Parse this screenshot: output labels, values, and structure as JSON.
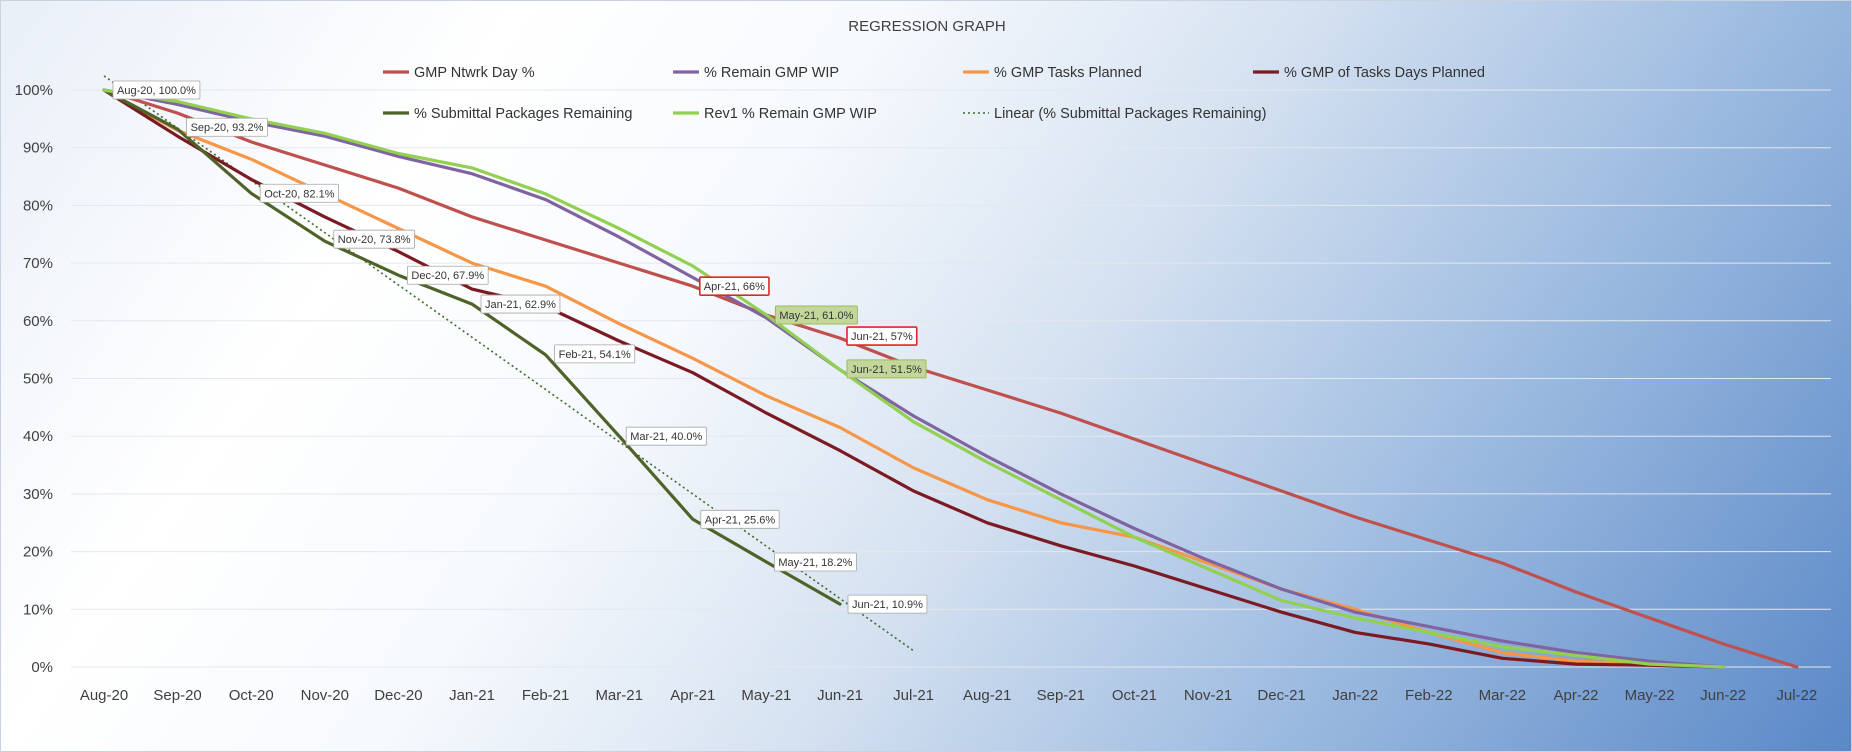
{
  "chart_data": {
    "type": "line",
    "title": "REGRESSION GRAPH",
    "xlabel": "",
    "ylabel": "",
    "ylim": [
      0,
      100
    ],
    "y_ticks": [
      "0%",
      "10%",
      "20%",
      "30%",
      "40%",
      "50%",
      "60%",
      "70%",
      "80%",
      "90%",
      "100%"
    ],
    "grid": "horizontal",
    "legend_position": "top",
    "categories": [
      "Aug-20",
      "Sep-20",
      "Oct-20",
      "Nov-20",
      "Dec-20",
      "Jan-21",
      "Feb-21",
      "Mar-21",
      "Apr-21",
      "May-21",
      "Jun-21",
      "Jul-21",
      "Aug-21",
      "Sep-21",
      "Oct-21",
      "Nov-21",
      "Dec-21",
      "Jan-22",
      "Feb-22",
      "Mar-22",
      "Apr-22",
      "May-22",
      "Jun-22",
      "Jul-22"
    ],
    "series": [
      {
        "name": "GMP Ntwrk Day %",
        "color": "#c0504d",
        "values": [
          100,
          96,
          91,
          87,
          83,
          78,
          74,
          70,
          66,
          61,
          57,
          52,
          48,
          44,
          39.5,
          35,
          30.5,
          26,
          22,
          18,
          13,
          8.5,
          4,
          0
        ]
      },
      {
        "name": "% Remain GMP WIP",
        "color": "#8064a2",
        "values": [
          100,
          97.5,
          94.5,
          92,
          88.5,
          85.5,
          81,
          74.5,
          67.5,
          60.5,
          51.5,
          43.5,
          36.5,
          30,
          24,
          18.5,
          13.5,
          9.5,
          7,
          4.5,
          2.5,
          1,
          0,
          null
        ]
      },
      {
        "name": "% GMP Tasks Planned",
        "color": "#f79646",
        "values": [
          100,
          93,
          88,
          82,
          76,
          70,
          66,
          59.5,
          53.5,
          47,
          41.5,
          34.5,
          29,
          25,
          22.5,
          18,
          13.5,
          10,
          6,
          2.5,
          1,
          0.5,
          0,
          null
        ]
      },
      {
        "name": "% GMP of Tasks Days Planned",
        "color": "#7b1a22",
        "values": [
          100,
          92,
          84.5,
          78,
          72,
          65.5,
          62.5,
          56.5,
          51,
          44,
          37.5,
          30.5,
          25,
          21,
          17.5,
          13.5,
          9.5,
          6,
          4,
          1.5,
          0.5,
          0.3,
          0,
          null
        ]
      },
      {
        "name": "% Submittal Packages Remaining",
        "color": "#4f6228",
        "values": [
          100,
          93.2,
          82.1,
          73.8,
          67.9,
          62.9,
          54.1,
          40.0,
          25.6,
          18.2,
          10.9,
          null,
          null,
          null,
          null,
          null,
          null,
          null,
          null,
          null,
          null,
          null,
          null,
          null
        ]
      },
      {
        "name": "Rev1 % Remain GMP WIP",
        "color": "#92d050",
        "values": [
          100,
          98,
          95,
          92.5,
          89,
          86.5,
          82,
          76,
          69.5,
          61,
          51.5,
          42.5,
          35.5,
          29,
          22.5,
          17,
          11.5,
          8.5,
          6,
          3.5,
          2,
          0.5,
          0,
          null
        ]
      }
    ],
    "trendline": {
      "name": "Linear (% Submittal Packages Remaining)",
      "type": "linear",
      "color": "#3f6b2a",
      "x_end": "Jul-21"
    },
    "data_labels": [
      {
        "text": "Aug-20, 100.0%",
        "series": 4,
        "category": 0,
        "style": "plain"
      },
      {
        "text": "Sep-20, 93.2%",
        "series": 4,
        "category": 1,
        "style": "plain"
      },
      {
        "text": "Oct-20, 82.1%",
        "series": 4,
        "category": 2,
        "style": "plain"
      },
      {
        "text": "Nov-20, 73.8%",
        "series": 4,
        "category": 3,
        "style": "plain"
      },
      {
        "text": "Dec-20, 67.9%",
        "series": 4,
        "category": 4,
        "style": "plain"
      },
      {
        "text": "Jan-21, 62.9%",
        "series": 4,
        "category": 5,
        "style": "plain"
      },
      {
        "text": "Feb-21, 54.1%",
        "series": 4,
        "category": 6,
        "style": "plain"
      },
      {
        "text": "Mar-21, 40.0%",
        "series": 4,
        "category": 7,
        "style": "plain"
      },
      {
        "text": "Apr-21, 25.6%",
        "series": 4,
        "category": 8,
        "style": "plain"
      },
      {
        "text": "May-21, 18.2%",
        "series": 4,
        "category": 9,
        "style": "plain"
      },
      {
        "text": "Jun-21, 10.9%",
        "series": 4,
        "category": 10,
        "style": "plain"
      },
      {
        "text": "Apr-21, 66%",
        "series": 0,
        "category": 8,
        "style": "red"
      },
      {
        "text": "Jun-21, 57%",
        "series": 0,
        "category": 10,
        "style": "red"
      },
      {
        "text": "May-21, 61.0%",
        "series": 5,
        "category": 9,
        "style": "green"
      },
      {
        "text": "Jun-21, 51.5%",
        "series": 5,
        "category": 10,
        "style": "green"
      }
    ]
  }
}
